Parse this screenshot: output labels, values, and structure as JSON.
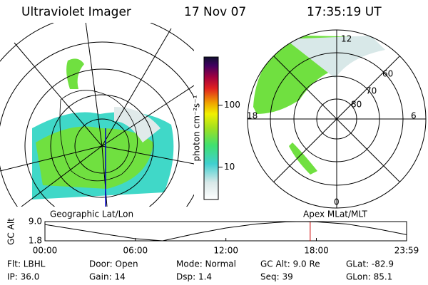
{
  "header": {
    "title": "Ultraviolet Imager",
    "date": "17 Nov 07",
    "time": "17:35:19 UT"
  },
  "colorbar": {
    "label": "photon cm⁻²s⁻¹",
    "range": [
      3,
      600
    ],
    "log": true,
    "ticks": [
      10,
      100
    ]
  },
  "mlt_plot": {
    "mlt_labels": [
      "12",
      "18",
      "6",
      "0"
    ],
    "lat_labels": [
      "60",
      "70",
      "80"
    ]
  },
  "panel_labels": {
    "left": "Geographic Lat/Lon",
    "right": "Apex MLat/MLT"
  },
  "altitude_plot": {
    "ylabel": "GC Alt",
    "yticks": [
      {
        "value": 9,
        "label": "9.0"
      },
      1.8
    ],
    "ylim": [
      1.8,
      9
    ],
    "xlim": [
      0,
      23.983
    ],
    "xticks": [
      {
        "value": 0,
        "label": "00:00"
      },
      {
        "value": 6,
        "label": "06:00"
      },
      {
        "value": 12,
        "label": "12:00"
      },
      {
        "value": 18,
        "label": "18:00"
      },
      {
        "value": 23.983,
        "label": "23:59"
      }
    ],
    "x": [
      0,
      2,
      4,
      6,
      7.8,
      10,
      12,
      14,
      16,
      17,
      18,
      20,
      22,
      23.98
    ],
    "values": [
      7.9,
      6.1,
      4.3,
      2.6,
      1.8,
      4.5,
      6.6,
      8.1,
      8.9,
      9.0,
      8.9,
      8.1,
      6.3,
      4.1
    ],
    "color": "#000000",
    "marker": 17.59,
    "marker_color": "#cc0000"
  },
  "footer": [
    [
      "Flt: LBHL",
      "IP: 36.0"
    ],
    [
      "Door: Open",
      "Gain: 14"
    ],
    [
      "Mode: Normal",
      "Dsp:   1.4"
    ],
    [
      "GC Alt: 9.0 Re",
      "Seq: 39"
    ],
    [
      "GLat: -82.9",
      "GLon:  85.1"
    ]
  ]
}
